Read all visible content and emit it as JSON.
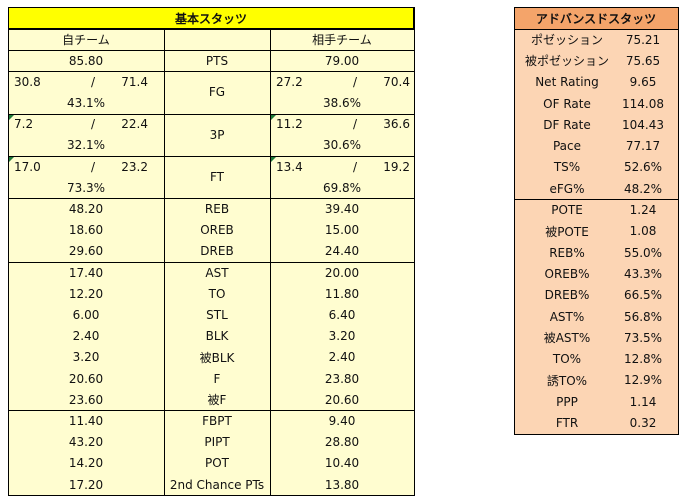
{
  "basic": {
    "title": "基本スタッツ",
    "col_own": "自チーム",
    "col_opp": "相手チーム",
    "pts": {
      "label": "PTS",
      "own": "85.80",
      "opp": "79.00"
    },
    "shooting": [
      {
        "label": "FG",
        "own_made": "30.8",
        "own_att": "71.4",
        "own_pct": "43.1%",
        "opp_made": "27.2",
        "opp_att": "70.4",
        "opp_pct": "38.6%"
      },
      {
        "label": "3P",
        "own_made": "7.2",
        "own_att": "22.4",
        "own_pct": "32.1%",
        "opp_made": "11.2",
        "opp_att": "36.6",
        "opp_pct": "30.6%"
      },
      {
        "label": "FT",
        "own_made": "17.0",
        "own_att": "23.2",
        "own_pct": "73.3%",
        "opp_made": "13.4",
        "opp_att": "19.2",
        "opp_pct": "69.8%"
      }
    ],
    "separator": "/",
    "groups": [
      [
        {
          "label": "REB",
          "own": "48.20",
          "opp": "39.40"
        },
        {
          "label": "OREB",
          "own": "18.60",
          "opp": "15.00"
        },
        {
          "label": "DREB",
          "own": "29.60",
          "opp": "24.40"
        }
      ],
      [
        {
          "label": "AST",
          "own": "17.40",
          "opp": "20.00"
        },
        {
          "label": "TO",
          "own": "12.20",
          "opp": "11.80"
        },
        {
          "label": "STL",
          "own": "6.00",
          "opp": "6.40"
        },
        {
          "label": "BLK",
          "own": "2.40",
          "opp": "3.20"
        },
        {
          "label": "被BLK",
          "own": "3.20",
          "opp": "2.40"
        },
        {
          "label": "F",
          "own": "20.60",
          "opp": "23.80"
        },
        {
          "label": "被F",
          "own": "23.60",
          "opp": "20.60"
        }
      ],
      [
        {
          "label": "FBPT",
          "own": "11.40",
          "opp": "9.40"
        },
        {
          "label": "PIPT",
          "own": "43.20",
          "opp": "28.80"
        },
        {
          "label": "POT",
          "own": "14.20",
          "opp": "10.40"
        },
        {
          "label": "2nd Chance PTs",
          "own": "17.20",
          "opp": "13.80"
        }
      ]
    ]
  },
  "advanced": {
    "title": "アドバンスドスタッツ",
    "groups": [
      [
        {
          "label": "ポゼッション",
          "value": "75.21"
        },
        {
          "label": "被ポゼッション",
          "value": "75.65"
        },
        {
          "label": "Net Rating",
          "value": "9.65"
        },
        {
          "label": "OF Rate",
          "value": "114.08"
        },
        {
          "label": "DF Rate",
          "value": "104.43"
        },
        {
          "label": "Pace",
          "value": "77.17"
        },
        {
          "label": "TS%",
          "value": "52.6%"
        },
        {
          "label": "eFG%",
          "value": "48.2%"
        }
      ],
      [
        {
          "label": "POTE",
          "value": "1.24"
        },
        {
          "label": "被POTE",
          "value": "1.08"
        },
        {
          "label": "REB%",
          "value": "55.0%"
        },
        {
          "label": "OREB%",
          "value": "43.3%"
        },
        {
          "label": "DREB%",
          "value": "66.5%"
        },
        {
          "label": "AST%",
          "value": "56.8%"
        },
        {
          "label": "被AST%",
          "value": "73.5%"
        },
        {
          "label": "TO%",
          "value": "12.8%"
        },
        {
          "label": "誘TO%",
          "value": "12.9%"
        },
        {
          "label": "PPP",
          "value": "1.14"
        },
        {
          "label": "FTR",
          "value": "0.32"
        }
      ]
    ]
  },
  "colors": {
    "basic_header": "#ffff00",
    "basic_body": "#fffdd0",
    "advanced_header": "#f4a46a",
    "advanced_body": "#fcd5b4",
    "marker": "#1e7a3a"
  }
}
